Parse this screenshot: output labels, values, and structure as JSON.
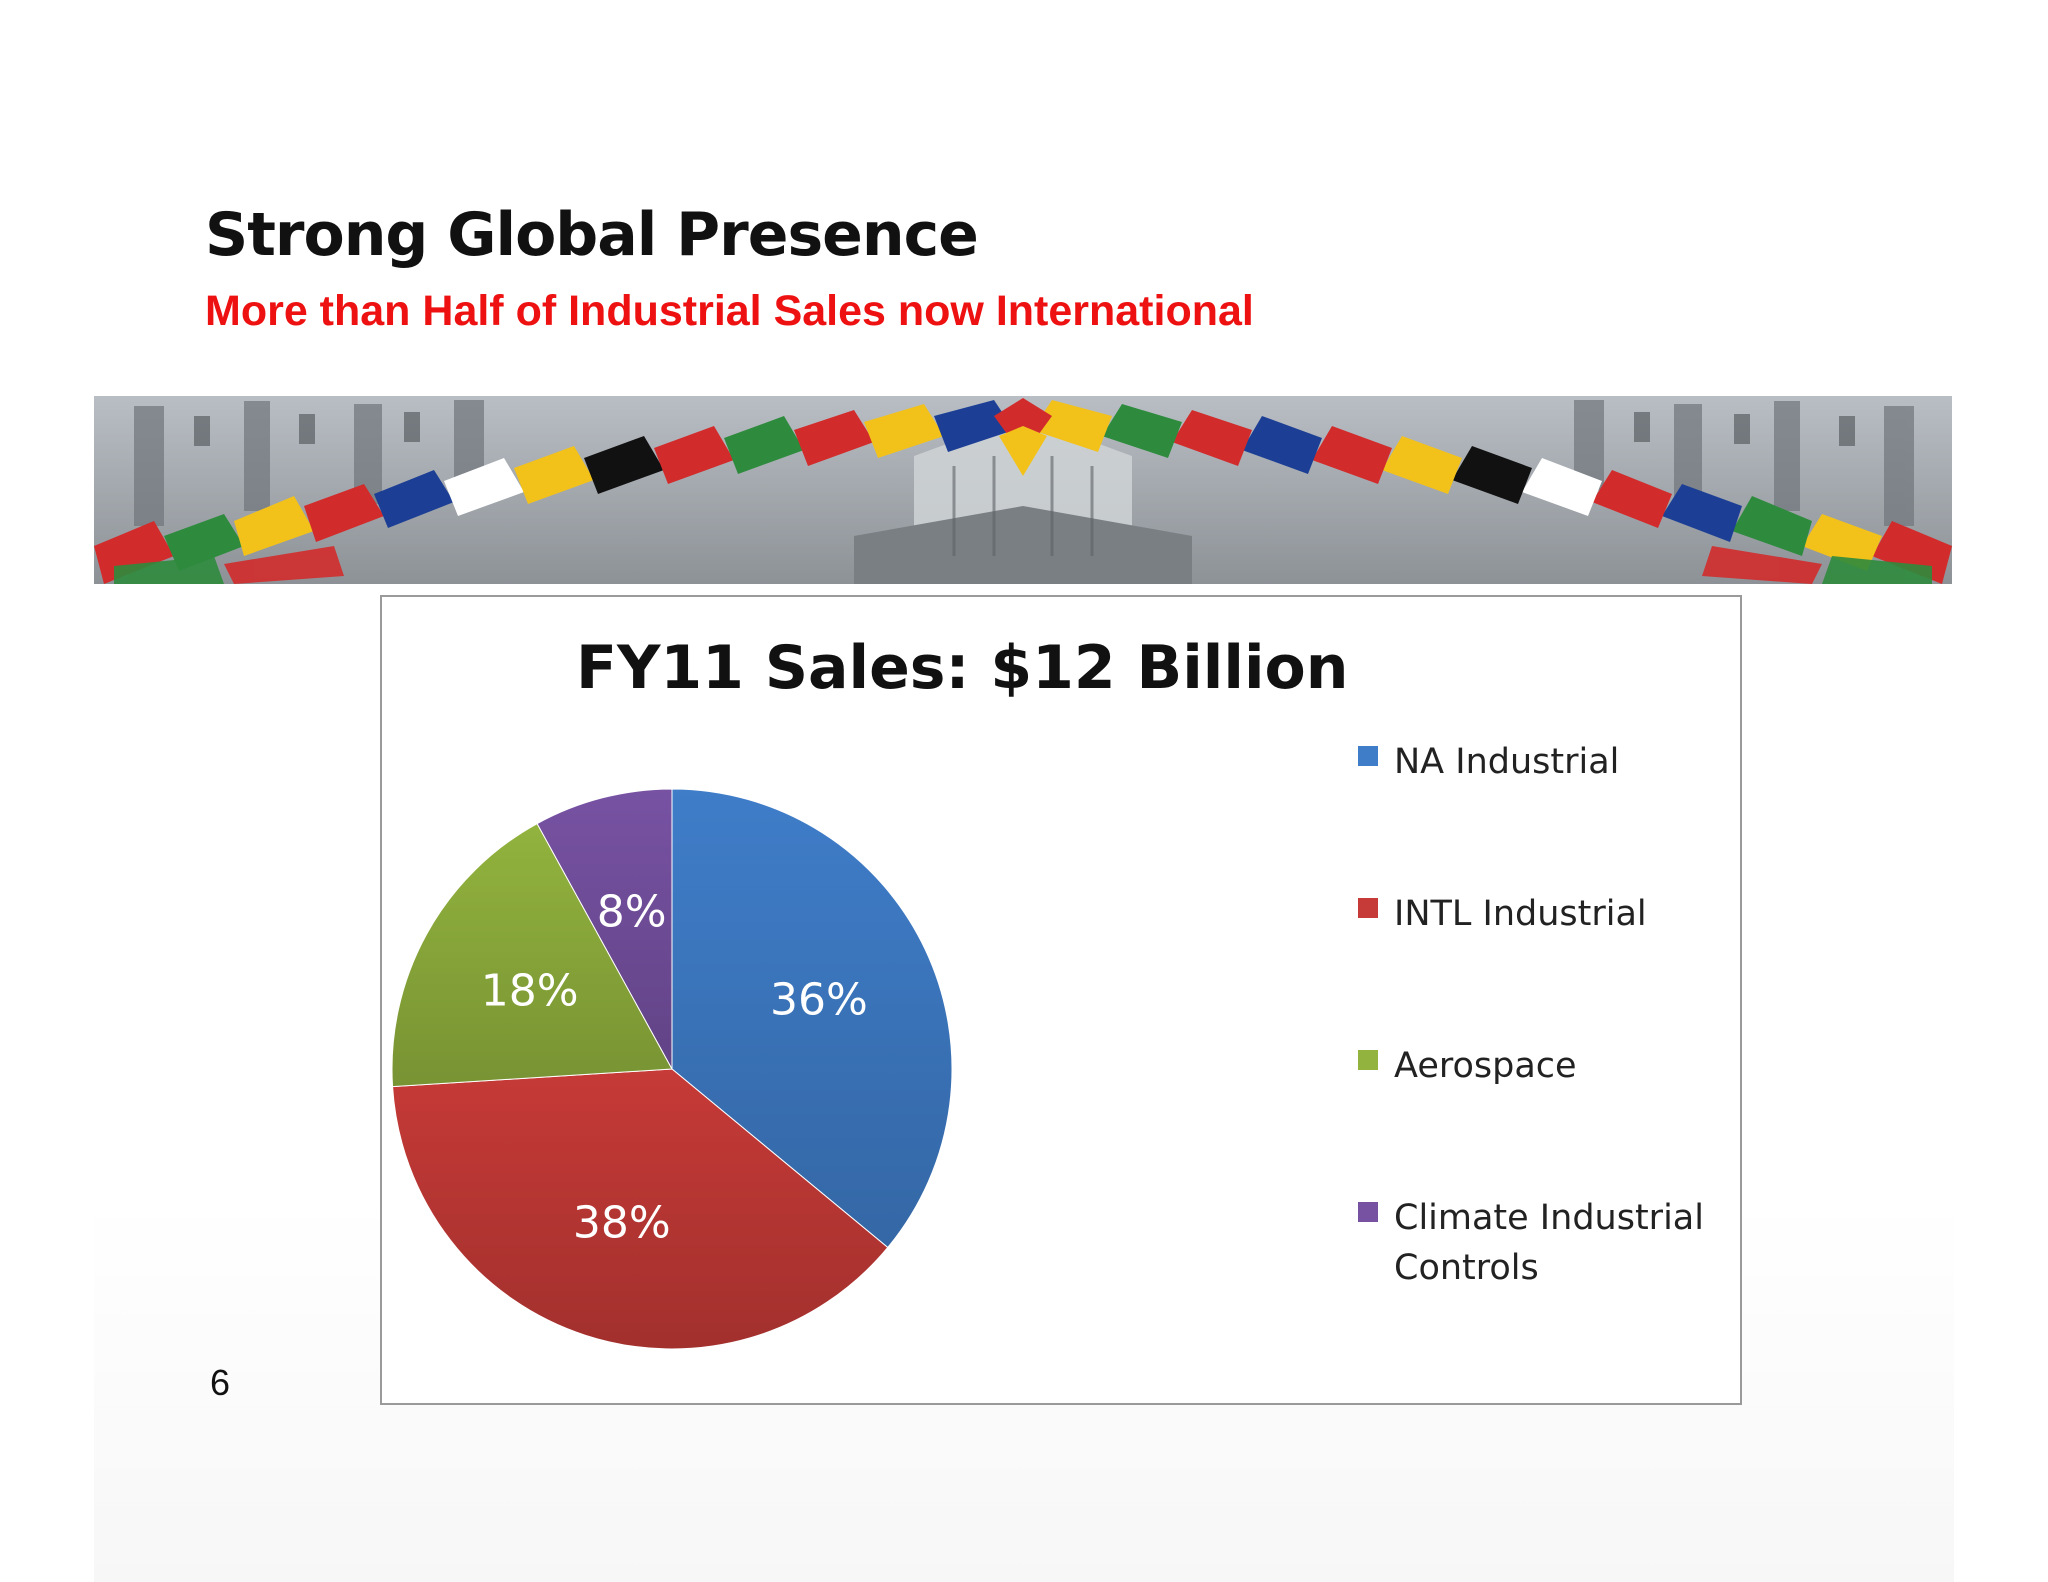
{
  "slide": {
    "title": "Strong Global Presence",
    "subtitle": "More than Half of Industrial Sales now International",
    "page_number": "6",
    "subtitle_color": "#ee1111"
  },
  "banner": {
    "image_description_icon": "flags-banner-photo"
  },
  "chart_data": {
    "type": "pie",
    "title": "FY11 Sales: $12 Billion",
    "slices": [
      {
        "name": "NA Industrial",
        "value": 36,
        "label": "36%",
        "color": "#3f7dc9"
      },
      {
        "name": "INTL Industrial",
        "value": 38,
        "label": "38%",
        "color": "#c63a37"
      },
      {
        "name": "Aerospace",
        "value": 18,
        "label": "18%",
        "color": "#92b33e"
      },
      {
        "name": "Climate Industrial Controls",
        "value": 8,
        "label": "8%",
        "color": "#7752a3"
      }
    ],
    "legend": {
      "position": "right"
    }
  }
}
